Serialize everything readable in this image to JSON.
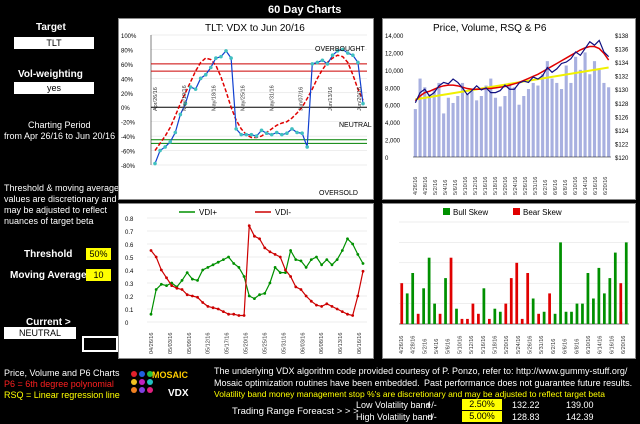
{
  "header": {
    "title": "60 Day Charts"
  },
  "sidebar": {
    "target_label": "Target",
    "target_value": "TLT",
    "volw_label": "Vol-weighting",
    "volw_value": "yes",
    "period_label": "Charting Period",
    "period_value": "from Apr 26/16 to Jun 20/16",
    "note": [
      "Threshold & moving average",
      "values are discretionary and",
      "may be adjusted to reflect",
      "nuances of target beta"
    ],
    "threshold_label": "Threshold",
    "threshold_value": "50%",
    "ma_label": "Moving Average",
    "ma_value": "10",
    "current_label": "Current >",
    "current_value": "NEUTRAL",
    "legend_title": "Price, Volume and P6 Charts",
    "legend_p6": "P6 = 6th degree polynomial",
    "legend_rsq": "RSQ = Linear regression line"
  },
  "logo": {
    "text": "MOSAIC",
    "sub": "VDX"
  },
  "footer": {
    "line1": "The underlying VDX algorithm code provided courtesy of P. Ponzo, refer to:  http://www.gummy-stuff.org/",
    "line2": "Mosaic optimization routines have been embedded.",
    "line2b": "Past performance does not guarantee future results.",
    "line3": "Volatility band money management stop %'s are discretionary and may be adjusted to reflect target beta",
    "forecast_label": "Trading Range Foreacst > > >",
    "low_label": "Low Volatility band",
    "high_label": "High Volatility band",
    "pm": "+/-",
    "low_pct": "2.50%",
    "low_a": "132.22",
    "low_b": "139.00",
    "high_pct": "5.00%",
    "high_a": "128.83",
    "high_b": "142.39"
  },
  "dates_a": [
    "4/26/16",
    "4/28/16",
    "5/2/16",
    "5/4/16",
    "5/6/16",
    "5/10/16",
    "5/12/16",
    "5/16/16",
    "5/18/16",
    "5/20/16",
    "5/24/16",
    "5/26/16",
    "5/31/16",
    "6/2/16",
    "6/6/16",
    "6/8/16",
    "6/10/16",
    "6/14/16",
    "6/16/16",
    "6/20/16"
  ],
  "dates_b": [
    "Apr/26/16",
    "May/10/16",
    "May/18/16",
    "May/25/16",
    "May/31/16",
    "Jun/07/16",
    "Jun/13/16",
    "Jun/20/16"
  ],
  "dates_c": [
    "04/26/16",
    "05/03/16",
    "05/09/16",
    "05/12/16",
    "05/17/16",
    "05/20/16",
    "05/25/16",
    "05/31/16",
    "06/03/16",
    "06/08/16",
    "06/13/16",
    "06/16/16"
  ],
  "chart_data": [
    {
      "type": "line",
      "title": "TLT:   VDX to Jun 20/16",
      "annotations": [
        "OVERBOUGHT",
        "NEUTRAL",
        "OVERSOLD"
      ],
      "ylim": [
        -80,
        100
      ],
      "yticks": [
        "100%",
        "80%",
        "60%",
        "40%",
        "20%",
        "0%",
        "-20%",
        "-40%",
        "-60%",
        "-80%"
      ],
      "series": [
        {
          "values": [
            -78,
            -60,
            -55,
            -48,
            -35,
            -10,
            5,
            28,
            25,
            40,
            45,
            55,
            68,
            70,
            78,
            68,
            -30,
            -38,
            -38,
            -38,
            -40,
            -32,
            -36,
            -38,
            -35,
            -38,
            -36,
            -30,
            -35,
            -36,
            -55,
            60,
            62,
            65,
            60,
            72,
            78,
            80,
            75,
            72,
            62,
            5
          ]
        },
        {
          "values": [
            -60,
            -50,
            -40,
            -28,
            -12,
            5,
            20,
            35,
            50,
            62,
            68,
            66,
            58,
            42,
            22,
            0,
            -18,
            -30,
            -38,
            -42,
            -42,
            -40,
            -35,
            -30,
            -25,
            -22,
            -20,
            -15,
            -8,
            0,
            12,
            25,
            40,
            52,
            62,
            68,
            72,
            70,
            62,
            45,
            25,
            10
          ]
        }
      ],
      "reference_lines": [
        60,
        50,
        0,
        -45,
        -50
      ]
    },
    {
      "type": "line",
      "title": "Price,  Volume, RSQ & P6",
      "ylim": [
        120,
        138
      ],
      "yticks_right": [
        "$138",
        "$136",
        "$134",
        "$132",
        "$130",
        "$128",
        "$126",
        "$124",
        "$122",
        "$120"
      ],
      "yticks_left": [
        "14,000",
        "12,000",
        "10,000",
        "8,000",
        "6,000",
        "4,000",
        "2,000",
        "0"
      ],
      "volume": [
        5500,
        9000,
        8000,
        7200,
        7800,
        8500,
        5000,
        6800,
        6200,
        7000,
        8500,
        7200,
        7600,
        6500,
        7000,
        8200,
        9000,
        6800,
        5800,
        7000,
        8500,
        8000,
        6000,
        7000,
        7800,
        8500,
        8200,
        9500,
        11000,
        9000,
        8500,
        7800,
        10500,
        8500,
        11500,
        10000,
        12000,
        9500,
        11000,
        10000,
        8500,
        8000
      ],
      "series": [
        {
          "name": "price",
          "values": [
            128.0,
            129.5,
            130.0,
            129.0,
            129.5,
            130.5,
            131.0,
            130.8,
            131.5,
            131.0,
            130.2,
            129.2,
            129.8,
            130.5,
            129.9,
            130.2,
            129.5,
            129.5,
            129.8,
            130.6,
            130.0,
            130.0,
            130.9,
            131.2,
            131.0,
            131.8,
            131.5,
            132.0,
            133.2,
            132.5,
            133.0,
            133.8,
            134.0,
            134.5,
            135.5,
            135.0,
            136.0,
            137.0,
            136.5,
            137.2,
            135.5,
            134.8
          ]
        },
        {
          "name": "P6",
          "values": [
            128.3,
            129.0,
            129.5,
            129.7,
            130.0,
            130.3,
            130.5,
            130.6,
            130.6,
            130.5,
            130.3,
            130.1,
            130.0,
            130.0,
            130.0,
            130.1,
            130.1,
            130.2,
            130.3,
            130.4,
            130.6,
            130.8,
            131.0,
            131.3,
            131.6,
            131.9,
            132.2,
            132.6,
            133.0,
            133.4,
            133.8,
            134.2,
            134.6,
            135.0,
            135.4,
            135.8,
            136.1,
            136.3,
            136.3,
            136.0,
            135.3,
            134.3
          ]
        },
        {
          "name": "RSQ",
          "values": [
            128.5,
            133.2
          ]
        }
      ]
    },
    {
      "type": "line",
      "legend": [
        "VDI+",
        "VDI-"
      ],
      "ylim": [
        0,
        0.8
      ],
      "yticks": [
        "0.8",
        "0.7",
        "0.6",
        "0.5",
        "0.4",
        "0.3",
        "0.2",
        "0.1",
        "0"
      ],
      "series": [
        {
          "name": "VDI+",
          "values": [
            0.06,
            0.25,
            0.29,
            0.28,
            0.3,
            0.27,
            0.32,
            0.38,
            0.33,
            0.32,
            0.4,
            0.42,
            0.44,
            0.46,
            0.48,
            0.5,
            0.45,
            0.42,
            0.35,
            0.2,
            0.18,
            0.21,
            0.22,
            0.3,
            0.42,
            0.38,
            0.38,
            0.55,
            0.48,
            0.47,
            0.42,
            0.48,
            0.5,
            0.44,
            0.48,
            0.44,
            0.48,
            0.55,
            0.64,
            0.6,
            0.52,
            0.45
          ]
        },
        {
          "name": "VDI-",
          "values": [
            0.55,
            0.5,
            0.4,
            0.34,
            0.28,
            0.26,
            0.25,
            0.21,
            0.2,
            0.19,
            0.15,
            0.12,
            0.11,
            0.1,
            0.08,
            0.06,
            0.06,
            0.05,
            0.05,
            0.74,
            0.66,
            0.64,
            0.57,
            0.54,
            0.52,
            0.5,
            0.4,
            0.35,
            0.27,
            0.25,
            0.2,
            0.16,
            0.13,
            0.12,
            0.14,
            0.12,
            0.1,
            0.08,
            0.06,
            0.05,
            0.2,
            0.39
          ]
        }
      ]
    },
    {
      "type": "bar",
      "legend": [
        "Bull Skew",
        "Bear Skew"
      ],
      "series": [
        {
          "name": "Bull Skew",
          "values": [
            0,
            0.3,
            0.5,
            0,
            0.35,
            0.65,
            0.2,
            0,
            0.45,
            0,
            0.15,
            0,
            0,
            0,
            0,
            0.35,
            0,
            0.15,
            0.12,
            0,
            0,
            0,
            0,
            0,
            0.25,
            0,
            0.12,
            0,
            0.1,
            0.8,
            0.12,
            0.12,
            0.2,
            0.2,
            0.5,
            0.25,
            0.55,
            0.3,
            0.45,
            0.7,
            0.12,
            0.8
          ]
        },
        {
          "name": "Bear Skew",
          "values": [
            0.4,
            0,
            0,
            0.1,
            0,
            0,
            0,
            0.1,
            0,
            0.65,
            0,
            0.05,
            0.05,
            0.2,
            0.1,
            0,
            0.05,
            0,
            0,
            0.2,
            0.45,
            0.6,
            0.05,
            0.5,
            0,
            0.1,
            0,
            0.3,
            0,
            0,
            0,
            0,
            0,
            0,
            0,
            0,
            0,
            0,
            0,
            0,
            0.4,
            0
          ]
        }
      ]
    }
  ]
}
